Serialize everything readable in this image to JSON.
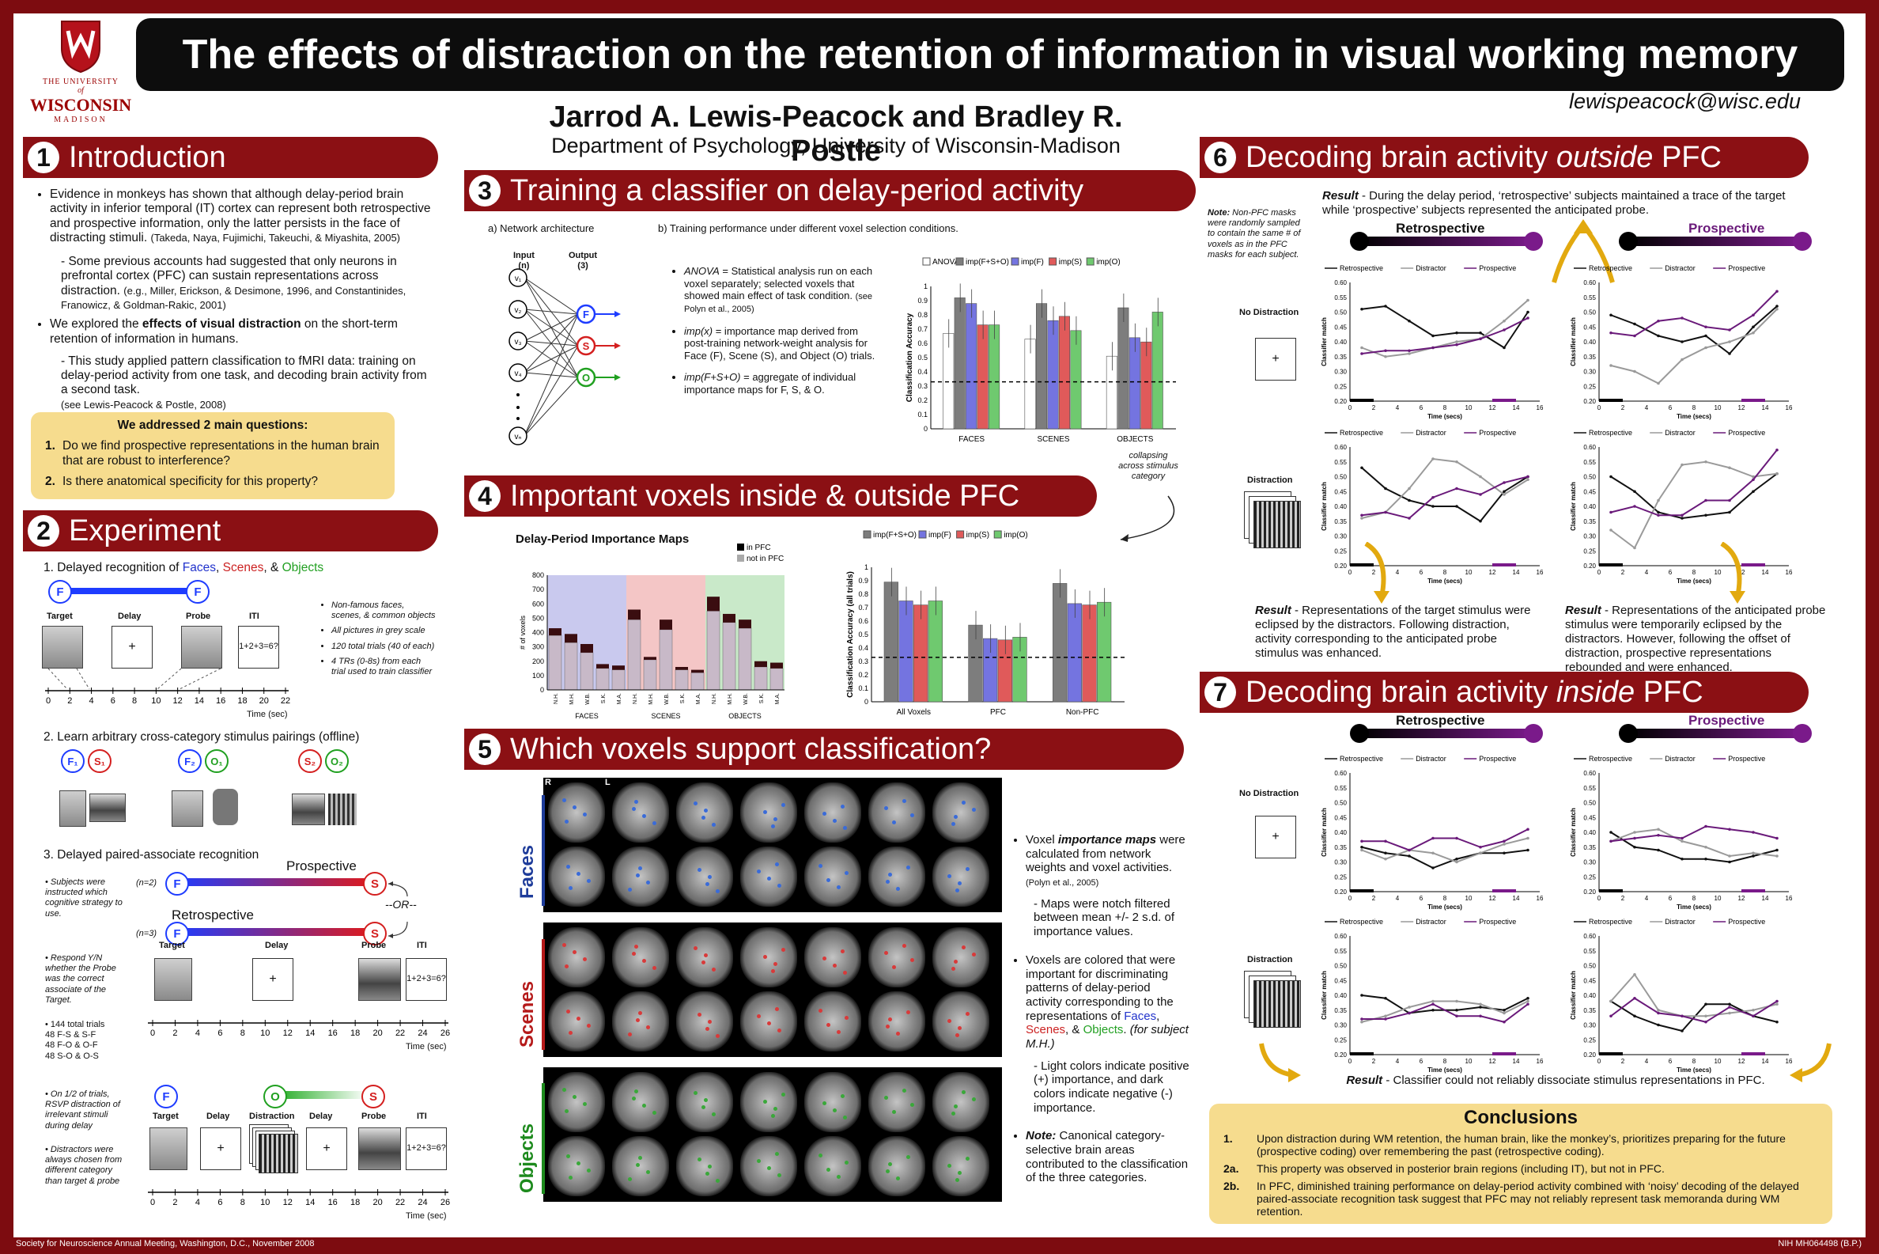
{
  "title": "The effects of distraction on the retention of information in visual working memory",
  "logo": {
    "line1": "THE UNIVERSITY",
    "line2": "WISCONSIN",
    "line3": "MADISON",
    "of": "of"
  },
  "authors": "Jarrod A. Lewis-Peacock and Bradley R. Postle",
  "department": "Department of Psychology, University of Wisconsin-Madison",
  "email": "lewispeacock@wisc.edu",
  "footer": {
    "left": "Society for Neuroscience Annual Meeting, Washington, D.C., November 2008",
    "right": "NIH MH064498 (B.P.)"
  },
  "s1": {
    "num": "1",
    "title": "Introduction",
    "b1": "Evidence in monkeys has shown that although delay-period brain activity in inferior temporal (IT) cortex can represent both retrospective and prospective information, only the latter persists in the face of distracting stimuli.",
    "b1ref": "(Takeda, Naya, Fujimichi, Takeuchi, & Miyashita, 2005)",
    "b1sub": "Some previous accounts had suggested that only neurons in prefrontal cortex (PFC) can sustain representations across distraction.",
    "b1subref": "(e.g., Miller, Erickson, & Desimone, 1996, and Constantinides, Franowicz, & Goldman-Rakic, 2001)",
    "b2a": "We explored the ",
    "b2b": "effects of visual distraction",
    "b2c": " on the short-term retention of information in humans.",
    "b2sub": "This study applied pattern classification to fMRI data: training on delay-period activity from one task, and decoding brain activity from a second task.",
    "b2subref": "(see Lewis-Peacock & Postle, 2008)",
    "q_head": "We addressed 2 main questions:",
    "q1": "Do we find prospective representations in the human brain that are robust to interference?",
    "q2": "Is there anatomical specificity for this property?",
    "q1n": "1.",
    "q2n": "2."
  },
  "s2": {
    "num": "2",
    "title": "Experiment",
    "p1a": "1. Delayed recognition of ",
    "p1faces": "Faces",
    "p1scenes": "Scenes",
    "p1objects": "Objects",
    "comma": ", ",
    "amp": ", & ",
    "labels": {
      "target": "Target",
      "delay": "Delay",
      "probe": "Probe",
      "iti": "ITI",
      "distraction": "Distraction",
      "time_sec": "Time (sec)",
      "iti_eq": "1+2+3=6?",
      "plus": "+"
    },
    "ticks22": [
      "0",
      "2",
      "4",
      "6",
      "8",
      "10",
      "12",
      "14",
      "16",
      "18",
      "20",
      "22"
    ],
    "ticks26": [
      "0",
      "2",
      "4",
      "6",
      "8",
      "10",
      "12",
      "14",
      "16",
      "18",
      "20",
      "22",
      "24",
      "26"
    ],
    "notes1": [
      "Non-famous faces, scenes, & common objects",
      "All pictures in grey scale",
      "120 total trials (40 of each)",
      "4 TRs (0-8s) from each trial used to train classifier"
    ],
    "p2": "2. Learn arbitrary cross-category stimulus pairings (offline)",
    "pairs": [
      {
        "a": "F₁",
        "b": "S₁"
      },
      {
        "a": "F₂",
        "b": "O₁"
      },
      {
        "a": "S₂",
        "b": "O₂"
      }
    ],
    "p3": "3. Delayed paired-associate recognition",
    "prospective": "Prospective",
    "retrospective": "Retrospective",
    "or": "--OR--",
    "n2": "(n=2)",
    "n3": "(n=3)",
    "notes3a": "Subjects were instructed which cognitive strategy to use.",
    "notes3b": "Respond Y/N whether the Probe was the correct associate of the Target.",
    "notes3c": "144 total trials\n48 F-S & S-F\n48 F-O & O-F\n48 S-O & O-S",
    "notes3d": "On 1/2 of trials, RSVP distraction of irrelevant stimuli during delay",
    "notes3e": "Distractors were always chosen from different category than target & probe",
    "F": "F",
    "S": "S",
    "O": "O"
  },
  "s3": {
    "num": "3",
    "title": "Training a classifier on delay-period activity",
    "a": "a) Network architecture",
    "b": "b) Training performance under different voxel selection conditions.",
    "input": "Input",
    "output": "Output",
    "in_n": "(n)",
    "out_n": "(3)",
    "voxels": [
      "v₁",
      "v₂",
      "v₃",
      "v₄",
      "vₙ"
    ],
    "t1a": "ANOVA",
    "t1b": " = Statistical analysis run on each voxel separately; selected voxels that showed main effect of task condition.",
    "t1ref": "(see Polyn et al., 2005)",
    "t2a": "imp(x)",
    "t2b": " = importance map derived from post-training network-weight analysis for Face (F), Scene (S), and Object (O) trials.",
    "t3a": "imp(F+S+O)",
    "t3b": " = aggregate of individual importance maps for F, S, & O.",
    "collapse": "collapsing across stimulus category"
  },
  "chart3": {
    "type": "bar",
    "ylabel": "Classification Accuracy",
    "categories": [
      "FACES",
      "SCENES",
      "OBJECTS"
    ],
    "ylim": [
      0,
      1.0
    ],
    "yticks": [
      "0",
      "0.1",
      "0.2",
      "0.3",
      "0.4",
      "0.5",
      "0.6",
      "0.7",
      "0.8",
      "0.9",
      "1"
    ],
    "legend": [
      "ANOVA",
      "imp(F+S+O)",
      "imp(F)",
      "imp(S)",
      "imp(O)"
    ],
    "colors": [
      "#ffffff",
      "#7d7d7d",
      "#7474e0",
      "#e05a5a",
      "#6fc96f"
    ],
    "series": [
      {
        "name": "ANOVA",
        "values": [
          0.67,
          0.63,
          0.51
        ]
      },
      {
        "name": "imp(F+S+O)",
        "values": [
          0.92,
          0.88,
          0.85
        ]
      },
      {
        "name": "imp(F)",
        "values": [
          0.88,
          0.76,
          0.64
        ]
      },
      {
        "name": "imp(S)",
        "values": [
          0.73,
          0.79,
          0.61
        ]
      },
      {
        "name": "imp(O)",
        "values": [
          0.73,
          0.69,
          0.82
        ]
      }
    ],
    "chance": 0.33
  },
  "s4": {
    "num": "4",
    "title": "Important voxels inside & outside PFC",
    "map_title": "Delay-Period Importance Maps",
    "inpfc": "in PFC",
    "notpfc": "not in PFC"
  },
  "chart4a": {
    "type": "bar",
    "ylabel": "# of voxels",
    "groups": [
      "FACES",
      "SCENES",
      "OBJECTS"
    ],
    "subjects": [
      "N.H.",
      "M.H.",
      "W.B.",
      "S.K.",
      "M.A."
    ],
    "ylim": [
      0,
      800
    ],
    "yticks": [
      "0",
      "100",
      "200",
      "300",
      "400",
      "500",
      "600",
      "700",
      "800"
    ],
    "notpfc": [
      [
        380,
        330,
        260,
        150,
        140
      ],
      [
        490,
        210,
        420,
        140,
        120
      ],
      [
        550,
        470,
        430,
        160,
        150
      ]
    ],
    "inpfc": [
      [
        50,
        60,
        60,
        30,
        30
      ],
      [
        70,
        20,
        70,
        20,
        20
      ],
      [
        100,
        60,
        60,
        40,
        40
      ]
    ],
    "bg": [
      "#c9c9ee",
      "#f4c6c6",
      "#c9e9c9"
    ]
  },
  "chart4b": {
    "type": "bar",
    "ylabel": "Classification Accuracy (all trials)",
    "categories": [
      "All Voxels",
      "PFC",
      "Non-PFC"
    ],
    "ylim": [
      0,
      1.0
    ],
    "yticks": [
      "0",
      "0.1",
      "0.2",
      "0.3",
      "0.4",
      "0.5",
      "0.6",
      "0.7",
      "0.8",
      "0.9",
      "1"
    ],
    "legend": [
      "imp(F+S+O)",
      "imp(F)",
      "imp(S)",
      "imp(O)"
    ],
    "colors": [
      "#7d7d7d",
      "#7474e0",
      "#e05a5a",
      "#6fc96f"
    ],
    "series": [
      {
        "name": "imp(F+S+O)",
        "values": [
          0.89,
          0.57,
          0.88
        ]
      },
      {
        "name": "imp(F)",
        "values": [
          0.75,
          0.47,
          0.73
        ]
      },
      {
        "name": "imp(S)",
        "values": [
          0.72,
          0.46,
          0.72
        ]
      },
      {
        "name": "imp(O)",
        "values": [
          0.75,
          0.48,
          0.74
        ]
      }
    ],
    "chance": 0.33
  },
  "s5": {
    "num": "5",
    "title": "Which voxels support classification?",
    "rowlabels": [
      "Faces",
      "Scenes",
      "Objects"
    ],
    "r": "R",
    "l": "L",
    "b1a": "Voxel ",
    "b1b": "importance maps",
    "b1c": " were calculated from network weights and voxel activities.",
    "b1ref": "(Polyn et al., 2005)",
    "b1sub": "- Maps were notch filtered between mean +/- 2 s.d. of importance values.",
    "b2a": "Voxels are colored that were important for discriminating patterns of delay-period activity corresponding to the representations of ",
    "faces": "Faces",
    "scenes": "Scenes",
    "objects": "Objects",
    "b2end": ".",
    "b2subj": "(for subject M.H.)",
    "b2sub": "- Light colors indicate positive (+) importance, and dark colors indicate negative (-) importance.",
    "b3a": "Note:",
    "b3b": " Canonical category-selective brain areas contributed to the classification of the three categories."
  },
  "s6": {
    "num": "6",
    "title_a": "Decoding brain activity ",
    "title_b": "outside",
    "title_c": " PFC",
    "note_a": "Note:",
    "note_b": " Non-PFC masks were randomly sampled to contain the same # of voxels as in the PFC masks for each subject.",
    "result_top_a": "Result",
    "result_top_b": " - During the delay period, ‘retrospective’ subjects maintained a trace of the target while ‘prospective’ subjects represented the anticipated probe.",
    "retro": "Retrospective",
    "prosp": "Prospective",
    "nodist": "No Distraction",
    "dist": "Distraction",
    "result_l_a": "Result",
    "result_l_b": " - Representations of the target stimulus were eclipsed by the distractors. Following distraction, activity corresponding to the anticipated probe stimulus was enhanced.",
    "result_r_a": "Result",
    "result_r_b": " - Representations of the anticipated probe stimulus were temporarily eclipsed by the distractors. However, following the offset of distraction, prospective representations rebounded and were enhanced."
  },
  "s7": {
    "num": "7",
    "title_a": "Decoding brain activity ",
    "title_b": "inside",
    "title_c": " PFC",
    "result_a": "Result",
    "result_b": " - Classifier could not reliably dissociate stimulus representations in PFC."
  },
  "linecharts": {
    "type": "line",
    "ylabel": "Classifier match",
    "xlabel": "Time (secs)",
    "x": [
      1,
      3,
      5,
      7,
      9,
      11,
      13,
      15
    ],
    "xticks": [
      "0",
      "2",
      "4",
      "6",
      "8",
      "10",
      "12",
      "14",
      "16"
    ],
    "yticks": [
      "0.20",
      "0.25",
      "0.30",
      "0.35",
      "0.40",
      "0.45",
      "0.50",
      "0.55",
      "0.60"
    ],
    "ylim": [
      0.2,
      0.6
    ],
    "legend": [
      "Retrospective",
      "Distractor",
      "Prospective"
    ],
    "colors": [
      "#111111",
      "#9a9a9a",
      "#6a1a7a"
    ],
    "panels": [
      {
        "id": "o-nd-r",
        "series": [
          [
            0.51,
            0.52,
            0.47,
            0.42,
            0.43,
            0.43,
            0.38,
            0.5
          ],
          [
            0.38,
            0.35,
            0.36,
            0.38,
            0.4,
            0.41,
            0.47,
            0.54
          ],
          [
            0.36,
            0.37,
            0.37,
            0.38,
            0.39,
            0.41,
            0.44,
            0.48
          ]
        ]
      },
      {
        "id": "o-nd-p",
        "series": [
          [
            0.49,
            0.46,
            0.42,
            0.4,
            0.42,
            0.36,
            0.45,
            0.52
          ],
          [
            0.32,
            0.3,
            0.26,
            0.34,
            0.38,
            0.4,
            0.43,
            0.51
          ],
          [
            0.43,
            0.42,
            0.47,
            0.48,
            0.45,
            0.44,
            0.49,
            0.57
          ]
        ]
      },
      {
        "id": "o-d-r",
        "series": [
          [
            0.53,
            0.46,
            0.42,
            0.4,
            0.4,
            0.35,
            0.45,
            0.5
          ],
          [
            0.36,
            0.38,
            0.46,
            0.56,
            0.55,
            0.5,
            0.44,
            0.49
          ],
          [
            0.37,
            0.38,
            0.36,
            0.43,
            0.46,
            0.44,
            0.48,
            0.5
          ]
        ]
      },
      {
        "id": "o-d-p",
        "series": [
          [
            0.5,
            0.45,
            0.38,
            0.36,
            0.37,
            0.38,
            0.45,
            0.51
          ],
          [
            0.32,
            0.26,
            0.42,
            0.54,
            0.55,
            0.53,
            0.5,
            0.51
          ],
          [
            0.38,
            0.4,
            0.37,
            0.37,
            0.42,
            0.42,
            0.49,
            0.59
          ]
        ]
      },
      {
        "id": "i-nd-r",
        "series": [
          [
            0.35,
            0.33,
            0.32,
            0.28,
            0.31,
            0.33,
            0.33,
            0.34
          ],
          [
            0.34,
            0.31,
            0.34,
            0.33,
            0.3,
            0.33,
            0.36,
            0.38
          ],
          [
            0.37,
            0.37,
            0.34,
            0.38,
            0.38,
            0.35,
            0.37,
            0.41
          ]
        ]
      },
      {
        "id": "i-nd-p",
        "series": [
          [
            0.4,
            0.35,
            0.34,
            0.31,
            0.31,
            0.3,
            0.32,
            0.34
          ],
          [
            0.37,
            0.4,
            0.41,
            0.37,
            0.35,
            0.32,
            0.33,
            0.32
          ],
          [
            0.37,
            0.38,
            0.39,
            0.38,
            0.42,
            0.41,
            0.4,
            0.38
          ]
        ]
      },
      {
        "id": "i-d-r",
        "series": [
          [
            0.4,
            0.39,
            0.34,
            0.35,
            0.35,
            0.36,
            0.35,
            0.39
          ],
          [
            0.31,
            0.33,
            0.36,
            0.38,
            0.38,
            0.37,
            0.34,
            0.38
          ],
          [
            0.32,
            0.32,
            0.34,
            0.37,
            0.33,
            0.33,
            0.31,
            0.37
          ]
        ]
      },
      {
        "id": "i-d-p",
        "series": [
          [
            0.38,
            0.33,
            0.3,
            0.28,
            0.37,
            0.37,
            0.33,
            0.31
          ],
          [
            0.38,
            0.47,
            0.35,
            0.33,
            0.33,
            0.34,
            0.35,
            0.37
          ],
          [
            0.33,
            0.39,
            0.34,
            0.33,
            0.31,
            0.36,
            0.33,
            0.38
          ]
        ]
      }
    ]
  },
  "conclusions": {
    "title": "Conclusions",
    "items": [
      {
        "n": "1.",
        "t": "Upon distraction during WM retention, the human brain, like the monkey’s, prioritizes preparing for the future (prospective coding) over remembering the past (retrospective coding)."
      },
      {
        "n": "2a.",
        "t": "This property was observed in posterior brain regions (including IT), but not in PFC."
      },
      {
        "n": "2b.",
        "t": "In PFC, diminished training performance on delay-period activity combined with ‘noisy’ decoding of the delayed paired-associate recognition task suggest that PFC may not reliably represent task memoranda during WM retention."
      }
    ]
  }
}
